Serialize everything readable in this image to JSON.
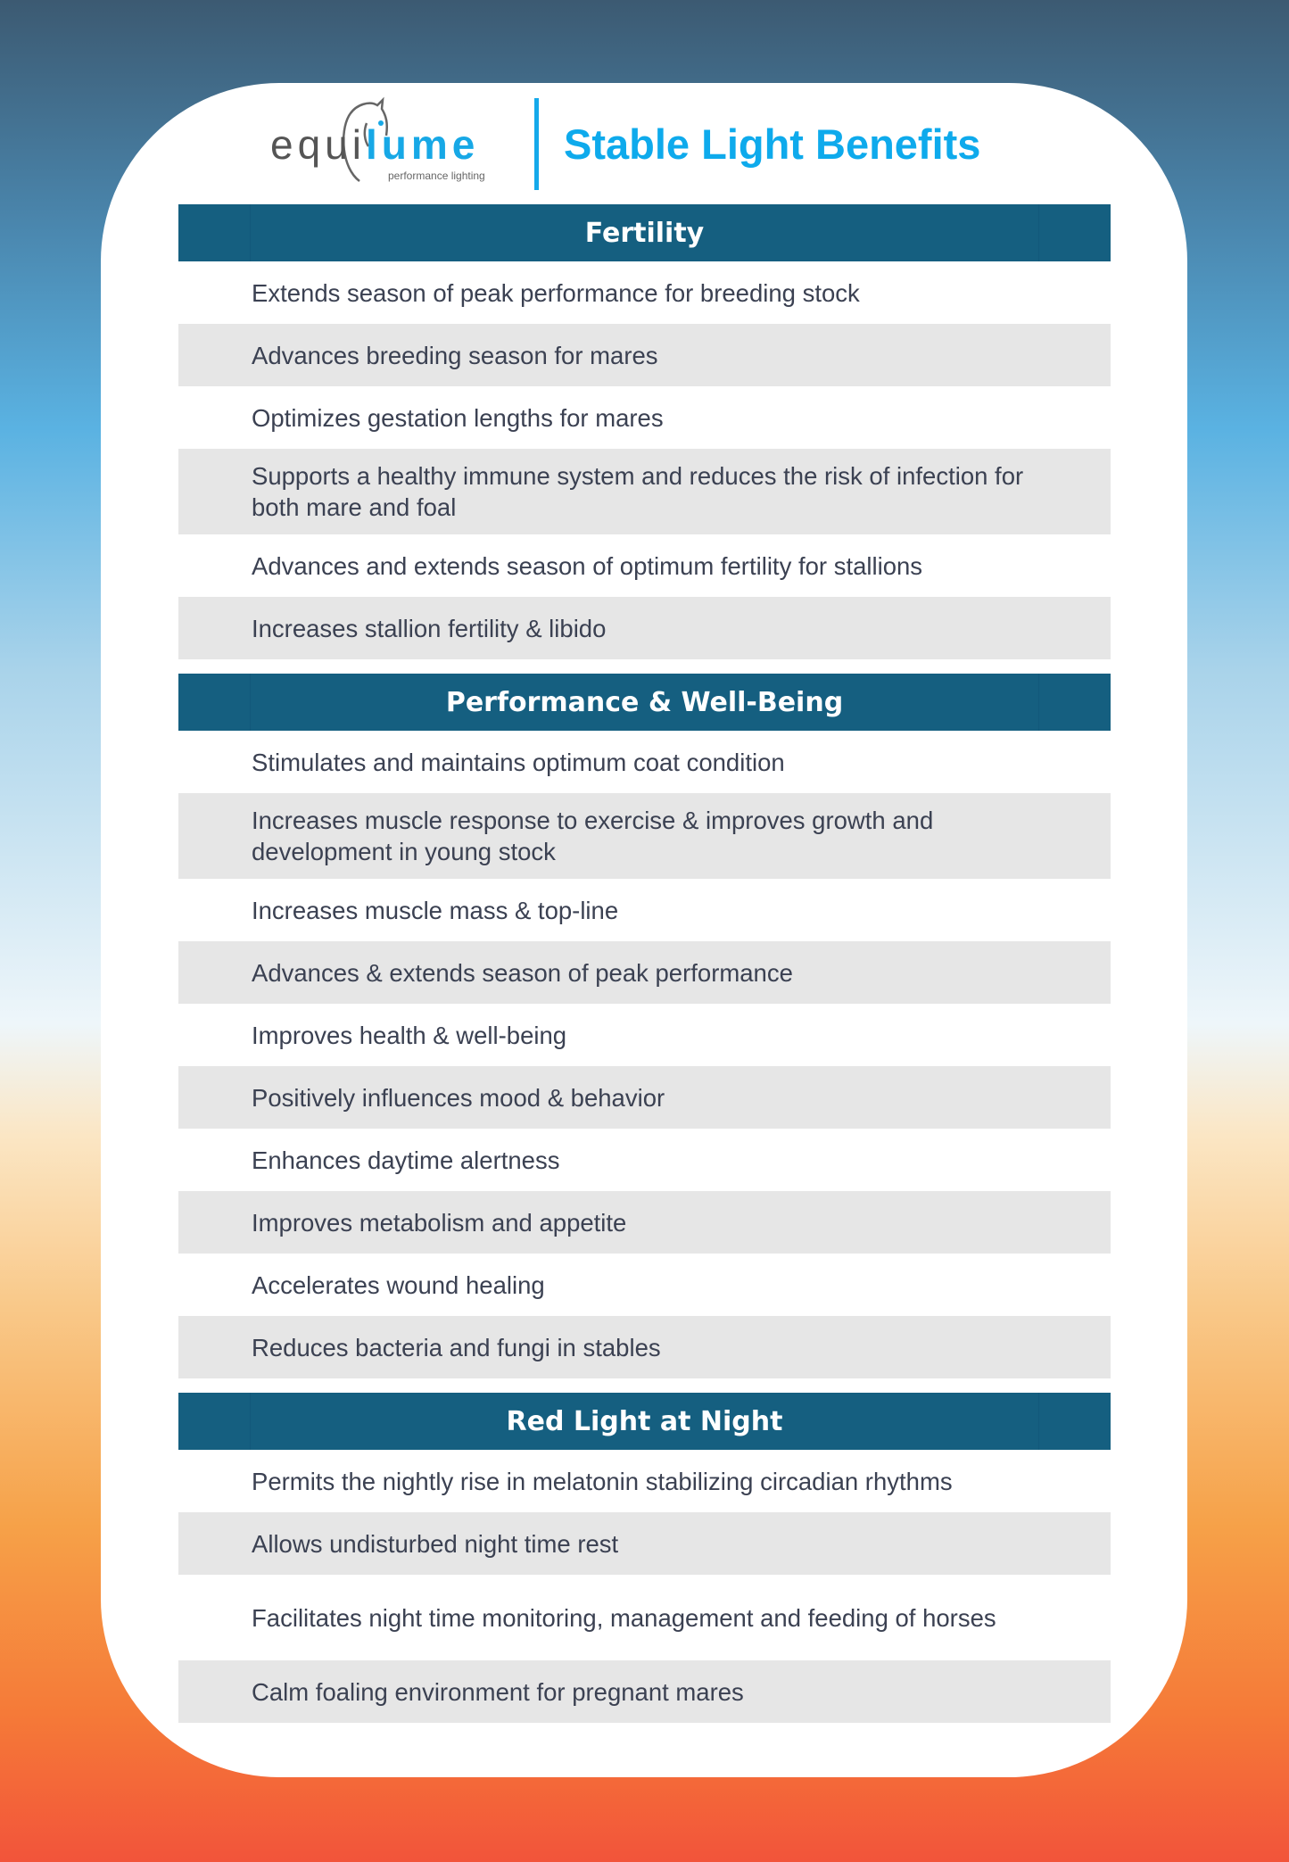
{
  "brand": {
    "logo_word_a": "equi",
    "logo_word_b": "lume",
    "tagline": "performance lighting",
    "accent": "#14a9ea"
  },
  "title": "Stable Light Benefits",
  "colors": {
    "header": "#155f80",
    "row_alt": "#e6e6e6"
  },
  "sections": [
    {
      "heading": "Fertility",
      "items": [
        "Extends season of peak performance for breeding stock",
        "Advances breeding season for mares",
        "Optimizes gestation lengths for mares",
        "Supports a healthy immune system and reduces the risk of infection for both mare and foal",
        "Advances and extends season of optimum fertility for stallions",
        "Increases stallion fertility & libido"
      ]
    },
    {
      "heading": "Performance & Well-Being",
      "items": [
        "Stimulates and maintains optimum coat condition",
        "Increases muscle response to exercise & improves growth and development in young stock",
        "Increases muscle mass & top-line",
        "Advances & extends season of peak performance",
        "Improves health & well-being",
        "Positively influences mood & behavior",
        "Enhances daytime alertness",
        "Improves metabolism and appetite",
        "Accelerates wound healing",
        "Reduces bacteria and fungi in stables"
      ]
    },
    {
      "heading": "Red Light at Night",
      "items": [
        "Permits the nightly rise in melatonin stabilizing circadian rhythms",
        "Allows undisturbed night time rest",
        "Facilitates night time monitoring, management and feeding of horses",
        "Calm foaling environment for pregnant mares"
      ]
    }
  ]
}
